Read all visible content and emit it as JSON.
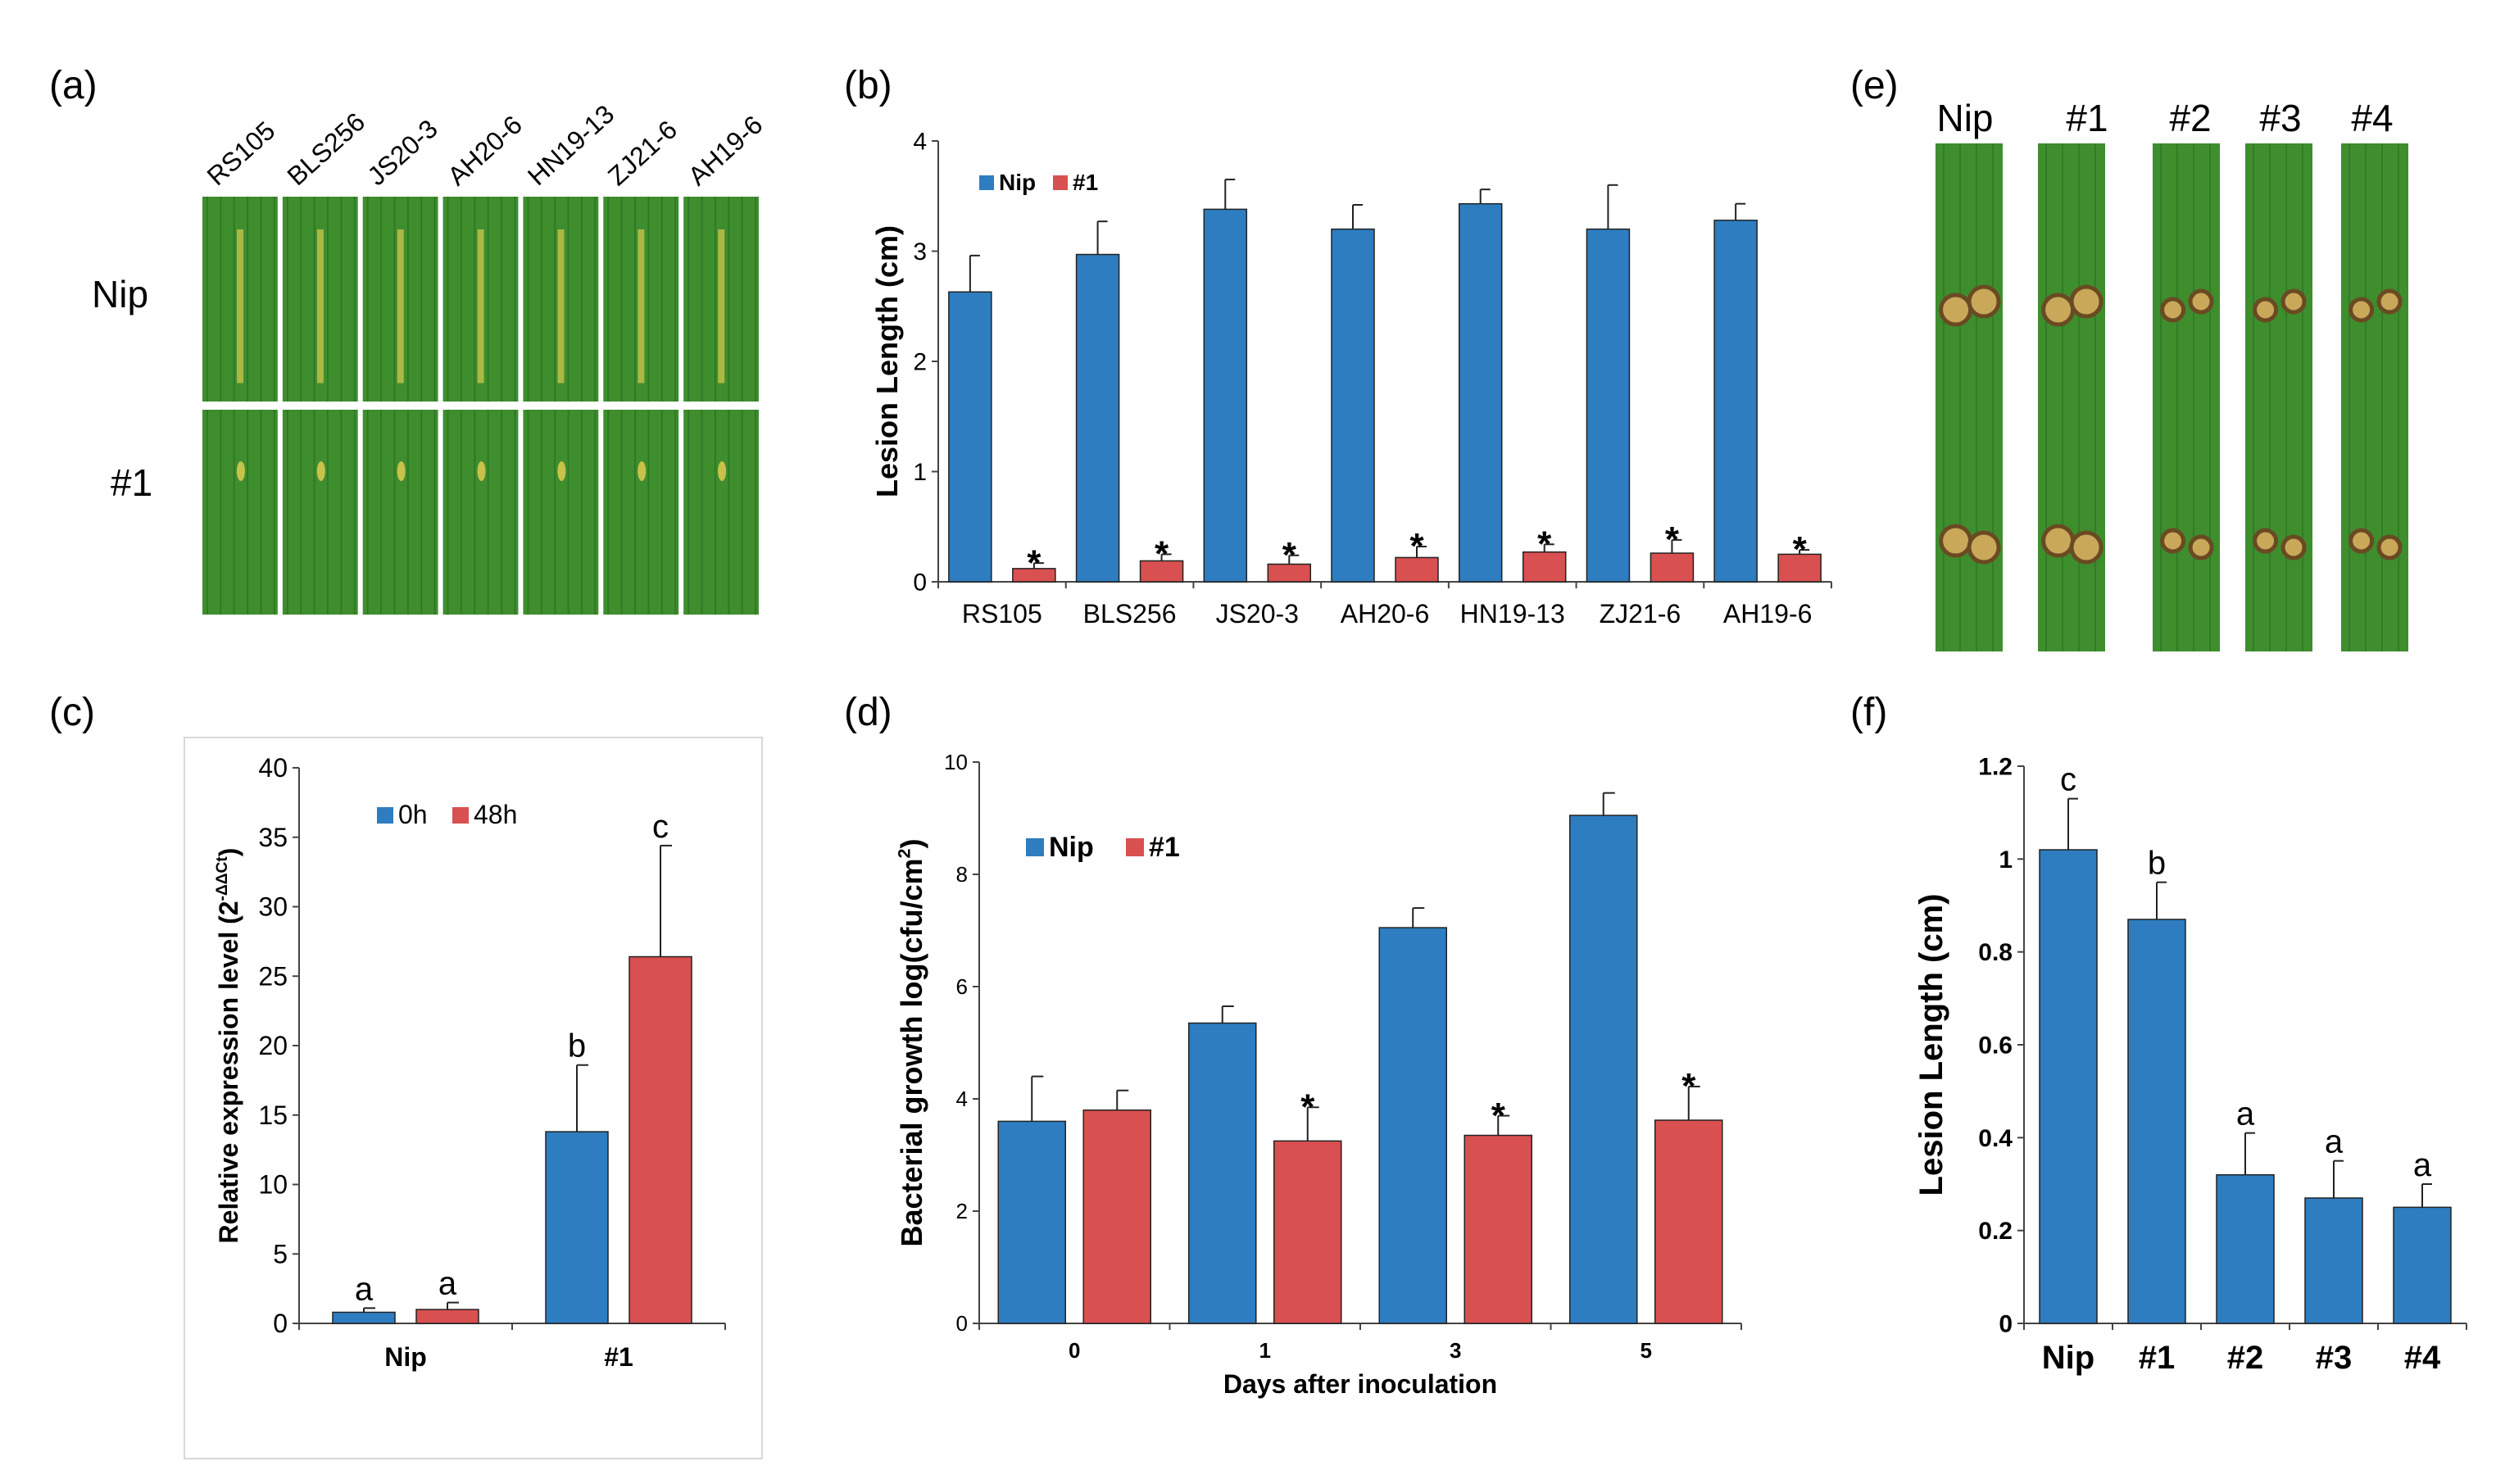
{
  "figure": {
    "panel_labels": [
      "(a)",
      "(b)",
      "(c)",
      "(d)",
      "(e)",
      "(f)"
    ],
    "colors": {
      "blue": "#2E7DC0",
      "red": "#D95050",
      "leaf": "#3E8E2E",
      "leaf_dark": "#2A6B1F"
    }
  },
  "panel_a": {
    "strains": [
      "RS105",
      "BLS256",
      "JS20-3",
      "AH20-6",
      "HN19-13",
      "ZJ21-6",
      "AH19-6"
    ],
    "rows": [
      "Nip",
      "#1"
    ]
  },
  "panel_e": {
    "lines": [
      "Nip",
      "#1",
      "#2",
      "#3",
      "#4"
    ]
  },
  "chart_data": [
    {
      "id": "b",
      "type": "bar",
      "title": "",
      "ylabel": "Lesion Length (cm)",
      "xlabel": "",
      "ylim": [
        0,
        4
      ],
      "yticks": [
        "0",
        "1",
        "2",
        "3",
        "4"
      ],
      "categories": [
        "RS105",
        "BLS256",
        "JS20-3",
        "AH20-6",
        "HN19-13",
        "ZJ21-6",
        "AH19-6"
      ],
      "legend": [
        "Nip",
        "#1"
      ],
      "legend_position": "top-left",
      "series": [
        {
          "name": "Nip",
          "color": "#2E7DC0",
          "values": [
            2.63,
            2.97,
            3.38,
            3.2,
            3.43,
            3.2,
            3.28
          ],
          "errors": [
            0.33,
            0.3,
            0.27,
            0.22,
            0.13,
            0.4,
            0.15
          ],
          "labels": [
            "",
            "",
            "",
            "",
            "",
            "",
            ""
          ]
        },
        {
          "name": "#1",
          "color": "#D95050",
          "values": [
            0.12,
            0.19,
            0.16,
            0.22,
            0.27,
            0.26,
            0.25
          ],
          "errors": [
            0.05,
            0.06,
            0.08,
            0.1,
            0.07,
            0.12,
            0.04
          ],
          "labels": [
            "*",
            "*",
            "*",
            "*",
            "*",
            "*",
            "*"
          ]
        }
      ]
    },
    {
      "id": "c",
      "type": "bar",
      "title": "",
      "ylabel": "Relative expression level (2",
      "ylabel_sup": "-ΔΔCt",
      "ylabel_end": ")",
      "xlabel": "",
      "ylim": [
        0,
        40
      ],
      "yticks": [
        "0",
        "5",
        "10",
        "15",
        "20",
        "25",
        "30",
        "35",
        "40"
      ],
      "categories": [
        "Nip",
        "#1"
      ],
      "legend": [
        "0h",
        "48h"
      ],
      "legend_position": "top-left",
      "series": [
        {
          "name": "0h",
          "color": "#2E7DC0",
          "values": [
            0.8,
            13.8
          ],
          "errors": [
            0.3,
            4.8
          ],
          "labels": [
            "a",
            "b"
          ]
        },
        {
          "name": "48h",
          "color": "#D95050",
          "values": [
            1.0,
            26.4
          ],
          "errors": [
            0.5,
            8.0
          ],
          "labels": [
            "a",
            "c"
          ]
        }
      ]
    },
    {
      "id": "d",
      "type": "bar",
      "title": "",
      "ylabel": "Bacterial growth log(cfu/cm",
      "ylabel_sup": "2",
      "ylabel_end": ")",
      "xlabel": "Days after inoculation",
      "ylim": [
        0,
        10
      ],
      "yticks": [
        "0",
        "2",
        "4",
        "6",
        "8",
        "10"
      ],
      "categories": [
        "0",
        "1",
        "3",
        "5"
      ],
      "legend": [
        "Nip",
        "#1"
      ],
      "legend_position": "top-left",
      "series": [
        {
          "name": "Nip",
          "color": "#2E7DC0",
          "values": [
            3.6,
            5.35,
            7.05,
            9.05
          ],
          "errors": [
            0.8,
            0.3,
            0.35,
            0.4
          ],
          "labels": [
            "",
            "",
            "",
            ""
          ]
        },
        {
          "name": "#1",
          "color": "#D95050",
          "values": [
            3.8,
            3.25,
            3.35,
            3.62
          ],
          "errors": [
            0.35,
            0.6,
            0.35,
            0.6
          ],
          "labels": [
            "",
            "*",
            "*",
            "*"
          ]
        }
      ]
    },
    {
      "id": "f",
      "type": "bar",
      "title": "",
      "ylabel": "Lesion Length (cm)",
      "xlabel": "",
      "ylim": [
        0,
        1.2
      ],
      "yticks": [
        "0",
        "0.2",
        "0.4",
        "0.6",
        "0.8",
        "1",
        "1.2"
      ],
      "categories": [
        "Nip",
        "#1",
        "#2",
        "#3",
        "#4"
      ],
      "legend": [],
      "series": [
        {
          "name": "Lesion Length",
          "color": "#2E7DC0",
          "values": [
            1.02,
            0.87,
            0.32,
            0.27,
            0.25
          ],
          "errors": [
            0.11,
            0.08,
            0.09,
            0.08,
            0.05
          ],
          "labels": [
            "c",
            "b",
            "a",
            "a",
            "a"
          ]
        }
      ]
    }
  ]
}
